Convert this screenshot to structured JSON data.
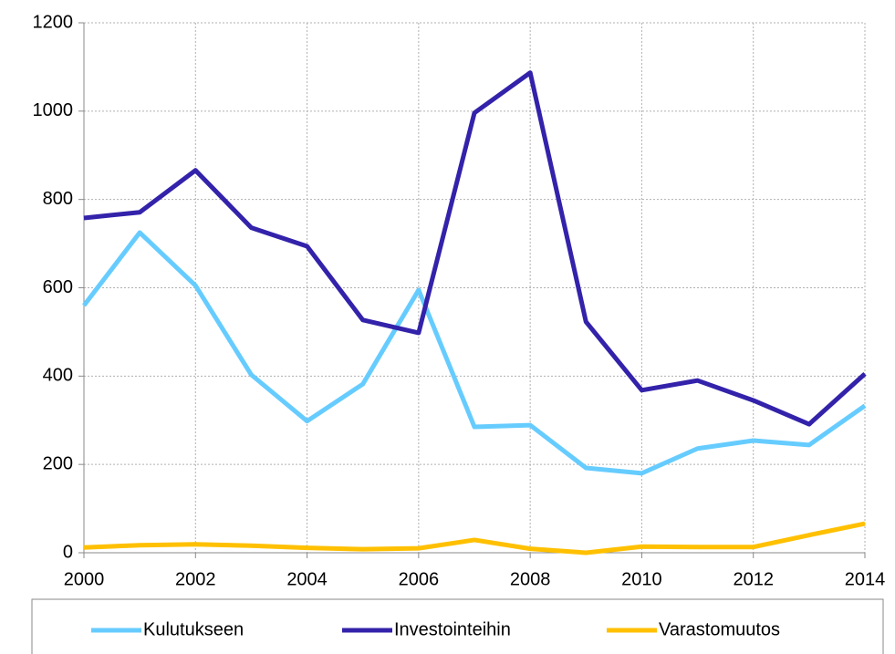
{
  "chart_data": {
    "type": "line",
    "x": [
      2000,
      2001,
      2002,
      2003,
      2004,
      2005,
      2006,
      2007,
      2008,
      2009,
      2010,
      2011,
      2012,
      2013,
      2014
    ],
    "series": [
      {
        "name": "Kulutukseen",
        "color": "#66ccff",
        "values": [
          560,
          725,
          605,
          403,
          298,
          382,
          595,
          285,
          289,
          192,
          180,
          236,
          254,
          244,
          333
        ]
      },
      {
        "name": "Investointeihin",
        "color": "#3322aa",
        "values": [
          758,
          771,
          866,
          736,
          694,
          527,
          498,
          996,
          1087,
          523,
          368,
          390,
          345,
          291,
          405
        ]
      },
      {
        "name": "Varastomuutos",
        "color": "#ffc000",
        "values": [
          12,
          17,
          19,
          16,
          11,
          8,
          10,
          29,
          9,
          0,
          14,
          13,
          13,
          40,
          66
        ]
      }
    ],
    "xlim": [
      2000,
      2014
    ],
    "xticks": [
      2000,
      2002,
      2004,
      2006,
      2008,
      2010,
      2012,
      2014
    ],
    "ylim": [
      0,
      1200
    ],
    "yticks": [
      0,
      200,
      400,
      600,
      800,
      1000,
      1200
    ],
    "grid": true,
    "legend": "bottom"
  }
}
